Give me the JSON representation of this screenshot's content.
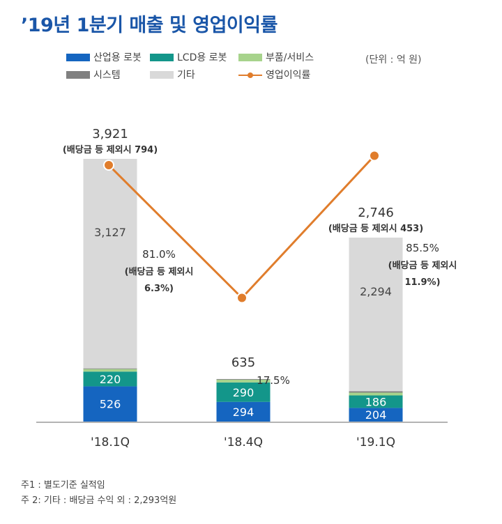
{
  "title": "’19년 1분기 매출 및 영업이익률",
  "unit_note": "(단위 : 억 원)",
  "legend": [
    {
      "label": "산업용 로봇",
      "color": "#1565c0",
      "kind": "box"
    },
    {
      "label": "LCD용 로봇",
      "color": "#13968a",
      "kind": "box"
    },
    {
      "label": "부품/서비스",
      "color": "#a7d38c",
      "kind": "box"
    },
    {
      "label": "시스템",
      "color": "#808080",
      "kind": "box"
    },
    {
      "label": "기타",
      "color": "#d9d9d9",
      "kind": "box"
    },
    {
      "label": "영업이익률",
      "color": "#e07d2c",
      "kind": "line"
    }
  ],
  "chart_data": {
    "type": "bar",
    "stacked": true,
    "categories": [
      "'18.1Q",
      "'18.4Q",
      "'19.1Q"
    ],
    "series": [
      {
        "name": "산업용 로봇",
        "color": "#1565c0",
        "values": [
          526,
          294,
          204
        ]
      },
      {
        "name": "LCD용 로봇",
        "color": "#13968a",
        "values": [
          220,
          290,
          186
        ]
      },
      {
        "name": "부품/서비스",
        "color": "#a7d38c",
        "values": [
          38,
          41,
          42
        ]
      },
      {
        "name": "시스템",
        "color": "#808080",
        "values": [
          10,
          10,
          20
        ]
      },
      {
        "name": "기타",
        "color": "#d9d9d9",
        "values": [
          3127,
          0,
          2294
        ]
      }
    ],
    "segment_labels": [
      [
        {
          "series": 0,
          "text": "526"
        },
        {
          "series": 1,
          "text": "220"
        },
        {
          "series": 4,
          "text": "3,127"
        }
      ],
      [
        {
          "series": 0,
          "text": "294"
        },
        {
          "series": 1,
          "text": "290"
        }
      ],
      [
        {
          "series": 0,
          "text": "204"
        },
        {
          "series": 1,
          "text": "186"
        },
        {
          "series": 4,
          "text": "2,294"
        }
      ]
    ],
    "totals": [
      "3,921",
      "635",
      "2,746"
    ],
    "totals_sub": [
      "(배당금 등 제외시 794)",
      "",
      "(배당금 등 제외시 453)"
    ],
    "operating_margin": {
      "name": "영업이익률",
      "color": "#e07d2c",
      "values": [
        81.0,
        17.5,
        85.5
      ],
      "labels": [
        [
          "81.0%",
          "(배당금 등 제외시",
          "6.3%)"
        ],
        [
          "17.5%"
        ],
        [
          "85.5%",
          "(배당금 등 제외시",
          "11.9%)"
        ]
      ]
    },
    "ylim": [
      0,
      4000
    ],
    "grid": false
  },
  "footnotes": [
    "주1 : 별도기준 실적임",
    "주 2: 기타 : 배당금 수익 외 : 2,293억원"
  ]
}
